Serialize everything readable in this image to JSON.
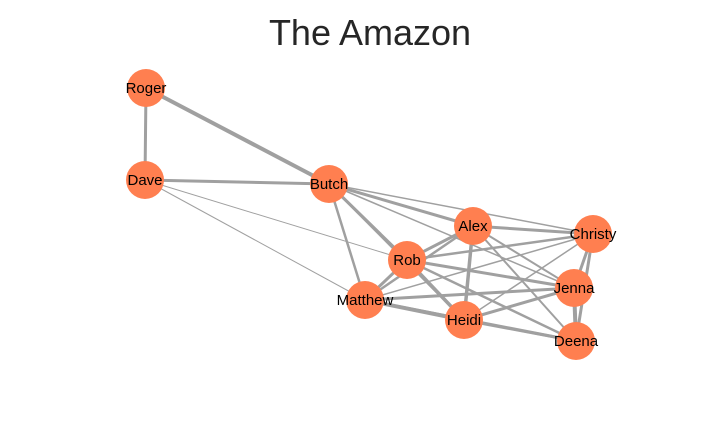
{
  "title": "The Amazon",
  "colors": {
    "node": "#ff7f50",
    "edge": "#a0a0a0",
    "label": "#000000",
    "title": "#262626",
    "background": "#ffffff"
  },
  "graph": {
    "nodes": [
      {
        "id": "roger",
        "label": "Roger"
      },
      {
        "id": "dave",
        "label": "Dave"
      },
      {
        "id": "butch",
        "label": "Butch"
      },
      {
        "id": "alex",
        "label": "Alex"
      },
      {
        "id": "christy",
        "label": "Christy"
      },
      {
        "id": "rob",
        "label": "Rob"
      },
      {
        "id": "jenna",
        "label": "Jenna"
      },
      {
        "id": "matthew",
        "label": "Matthew"
      },
      {
        "id": "heidi",
        "label": "Heidi"
      },
      {
        "id": "deena",
        "label": "Deena"
      }
    ],
    "edges": [
      {
        "source": "roger",
        "target": "dave",
        "weight": 3
      },
      {
        "source": "roger",
        "target": "butch",
        "weight": 4
      },
      {
        "source": "dave",
        "target": "butch",
        "weight": 3
      },
      {
        "source": "dave",
        "target": "rob",
        "weight": 1
      },
      {
        "source": "dave",
        "target": "matthew",
        "weight": 1
      },
      {
        "source": "butch",
        "target": "alex",
        "weight": 3
      },
      {
        "source": "butch",
        "target": "christy",
        "weight": 1.5
      },
      {
        "source": "butch",
        "target": "rob",
        "weight": 3
      },
      {
        "source": "butch",
        "target": "matthew",
        "weight": 2.5
      },
      {
        "source": "butch",
        "target": "heidi",
        "weight": 2
      },
      {
        "source": "butch",
        "target": "jenna",
        "weight": 1.5
      },
      {
        "source": "alex",
        "target": "christy",
        "weight": 3
      },
      {
        "source": "alex",
        "target": "rob",
        "weight": 3
      },
      {
        "source": "alex",
        "target": "jenna",
        "weight": 2
      },
      {
        "source": "alex",
        "target": "heidi",
        "weight": 3.5
      },
      {
        "source": "alex",
        "target": "deena",
        "weight": 2
      },
      {
        "source": "alex",
        "target": "matthew",
        "weight": 2.5
      },
      {
        "source": "christy",
        "target": "rob",
        "weight": 2.5
      },
      {
        "source": "christy",
        "target": "jenna",
        "weight": 3
      },
      {
        "source": "christy",
        "target": "deena",
        "weight": 3
      },
      {
        "source": "christy",
        "target": "heidi",
        "weight": 1.5
      },
      {
        "source": "christy",
        "target": "matthew",
        "weight": 1.5
      },
      {
        "source": "rob",
        "target": "jenna",
        "weight": 3
      },
      {
        "source": "rob",
        "target": "matthew",
        "weight": 3
      },
      {
        "source": "rob",
        "target": "heidi",
        "weight": 3.5
      },
      {
        "source": "rob",
        "target": "deena",
        "weight": 2.5
      },
      {
        "source": "jenna",
        "target": "heidi",
        "weight": 3
      },
      {
        "source": "jenna",
        "target": "deena",
        "weight": 4
      },
      {
        "source": "jenna",
        "target": "matthew",
        "weight": 3
      },
      {
        "source": "heidi",
        "target": "matthew",
        "weight": 4
      },
      {
        "source": "heidi",
        "target": "deena",
        "weight": 3
      },
      {
        "source": "matthew",
        "target": "deena",
        "weight": 3
      }
    ]
  }
}
